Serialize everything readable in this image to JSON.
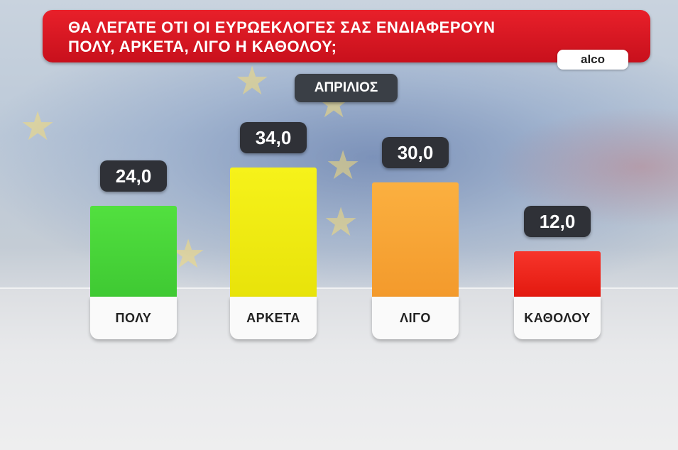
{
  "title": "ΘΑ ΛΕΓΑΤΕ ΟΤΙ ΟΙ ΕΥΡΩΕΚΛΟΓΕΣ ΣΑΣ ΕΝΔΙΑΦΕΡΟΥΝ\nΠΟΛΥ, ΑΡΚΕΤΑ, ΛΙΓΟ Η ΚΑΘΟΛΟΥ;",
  "source": "alco",
  "period": "ΑΠΡΙΛΙΟΣ",
  "colors": {
    "title_bg": "#d8141f",
    "bar_colors": [
      "#49d83a",
      "#f1ee10",
      "#f9a836",
      "#f3281f"
    ]
  },
  "chart_data": {
    "type": "bar",
    "title": "ΘΑ ΛΕΓΑΤΕ ΟΤΙ ΟΙ ΕΥΡΩΕΚΛΟΓΕΣ ΣΑΣ ΕΝΔΙΑΦΕΡΟΥΝ ΠΟΛΥ, ΑΡΚΕΤΑ, ΛΙΓΟ Η ΚΑΘΟΛΟΥ;",
    "categories": [
      "ΠΟΛΥ",
      "ΑΡΚΕΤΑ",
      "ΛΙΓΟ",
      "ΚΑΘΟΛΟΥ"
    ],
    "values": [
      24.0,
      34.0,
      30.0,
      12.0
    ],
    "value_labels": [
      "24,0",
      "34,0",
      "30,0",
      "12,0"
    ],
    "series_name": "ΑΠΡΙΛΙΟΣ",
    "ylim": [
      0,
      34.0
    ],
    "grid": false
  }
}
